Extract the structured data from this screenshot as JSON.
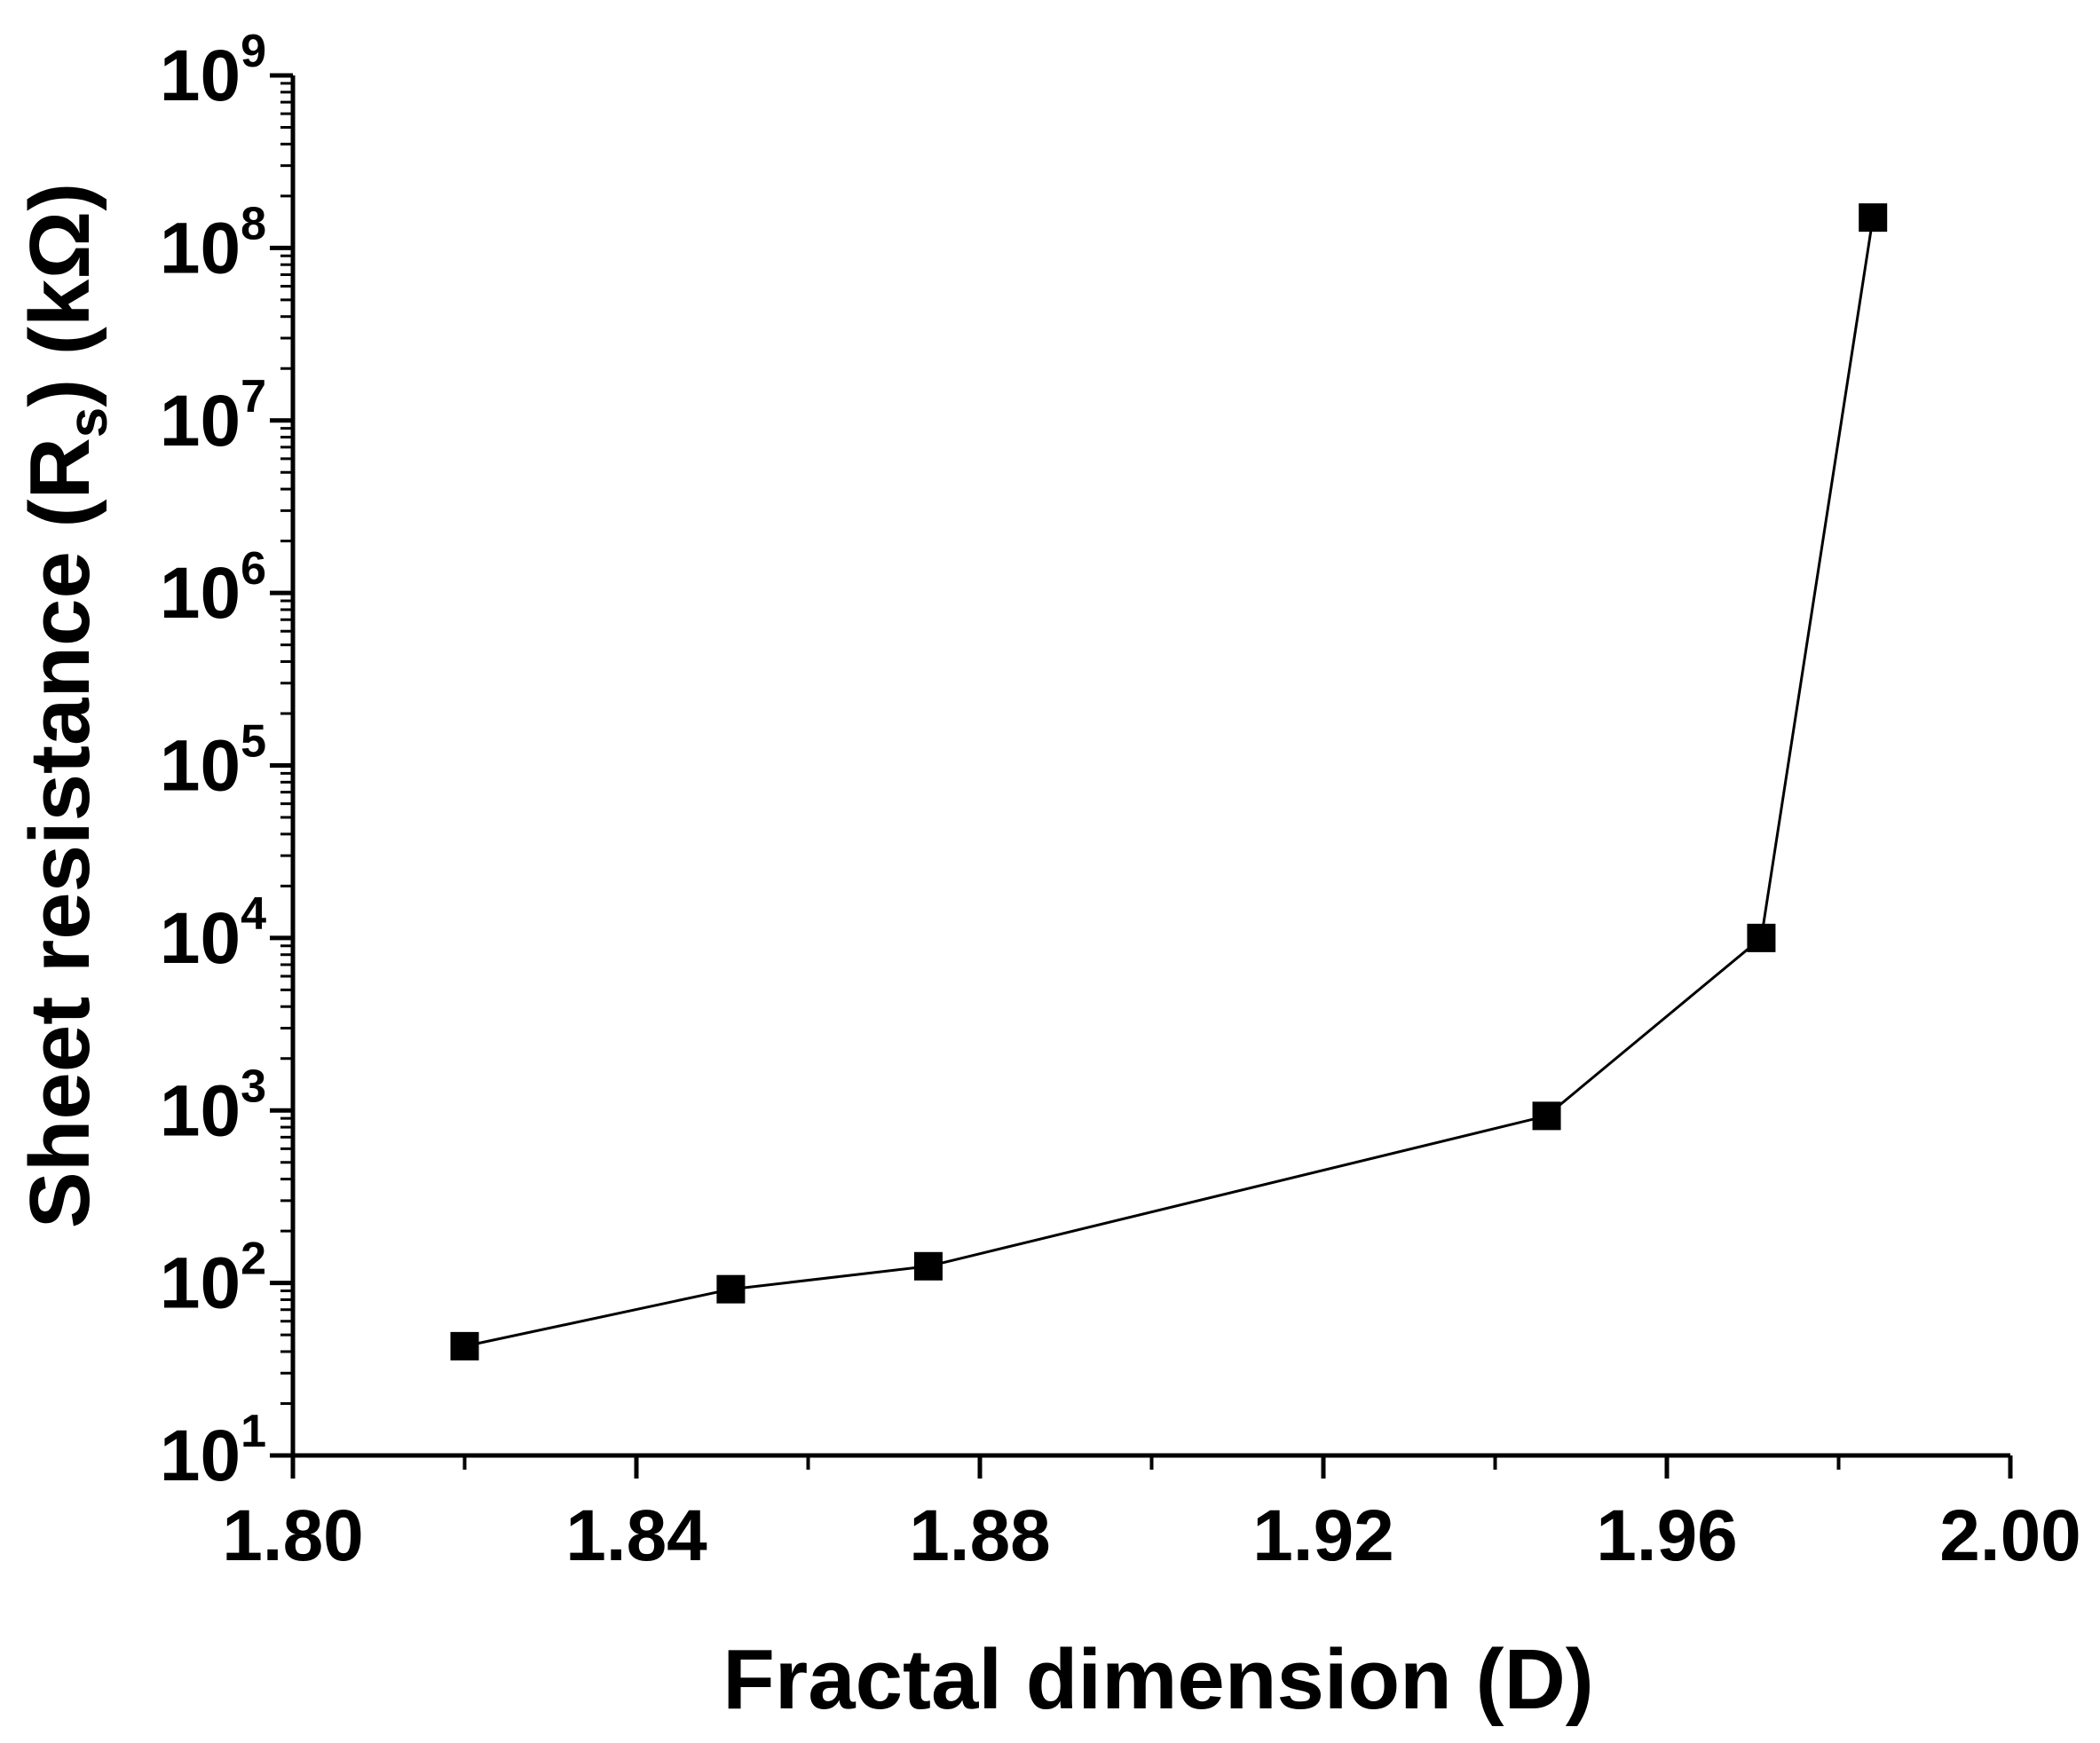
{
  "chart_data": {
    "type": "line",
    "markers": "square",
    "x": [
      1.82,
      1.851,
      1.874,
      1.946,
      1.971,
      1.984
    ],
    "series": [
      {
        "values": [
          43,
          92,
          125,
          930,
          10000,
          150000000
        ]
      }
    ],
    "xlabel": "Fractal dimension (D)",
    "ylabel": {
      "prefix": "Sheet resistance (R",
      "subscript": "s",
      "suffix": ") (kΩ)"
    },
    "xlim": [
      1.8,
      2.0
    ],
    "ylim": [
      10,
      1000000000
    ],
    "yscale": "log",
    "x_ticks": [
      "1.80",
      "1.84",
      "1.88",
      "1.92",
      "1.96",
      "2.00"
    ],
    "y_ticks": [
      {
        "base": "10",
        "exp": "1"
      },
      {
        "base": "10",
        "exp": "2"
      },
      {
        "base": "10",
        "exp": "3"
      },
      {
        "base": "10",
        "exp": "4"
      },
      {
        "base": "10",
        "exp": "5"
      },
      {
        "base": "10",
        "exp": "6"
      },
      {
        "base": "10",
        "exp": "7"
      },
      {
        "base": "10",
        "exp": "8"
      },
      {
        "base": "10",
        "exp": "9"
      }
    ],
    "grid": false,
    "legend": "none",
    "color": "#000000"
  }
}
